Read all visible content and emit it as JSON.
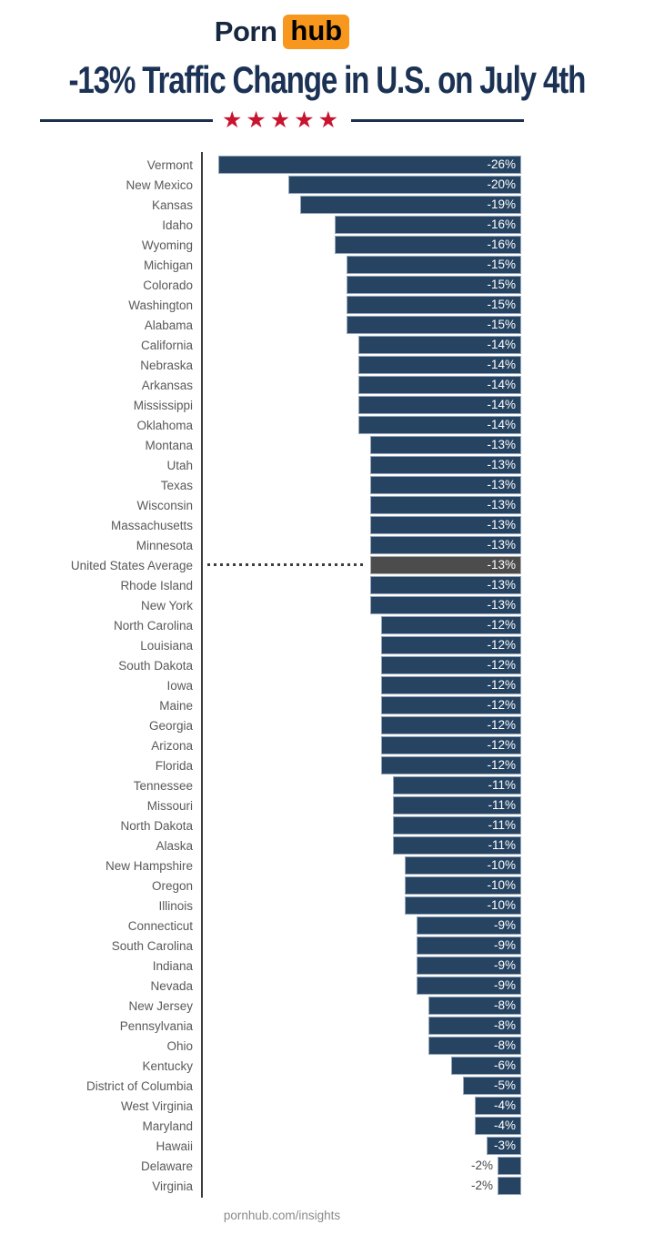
{
  "logo": {
    "porn": "Porn",
    "hub": "hub"
  },
  "header": {
    "title": "-13% Traffic Change in U.S. on July 4th",
    "star_count": 5,
    "star_glyph": "★"
  },
  "footer": {
    "text": "pornhub.com/insights"
  },
  "colors": {
    "bar": "#264462",
    "bar_border": "#94a5ba",
    "highlight_bar": "#4c4c4c",
    "title_navy": "#1c3254",
    "logo_orange": "#f7971d",
    "star_red": "#c8142f",
    "label_gray": "#595959",
    "axis_gray": "#3c3c3c",
    "footer_gray": "#8b8b8b"
  },
  "chart_data": {
    "type": "bar",
    "orientation": "horizontal",
    "unit": "%",
    "title": "-13% Traffic Change in U.S. on July 4th",
    "xlim": [
      -27.3,
      0
    ],
    "value_anchor": "right-edge, bars extend left for negative values",
    "legend": "none",
    "grid": "off",
    "highlight_label": "United States Average",
    "highlight_note": "gray bar with dotted leader line from axis",
    "bars": [
      {
        "label": "Vermont",
        "value": -26
      },
      {
        "label": "New Mexico",
        "value": -20
      },
      {
        "label": "Kansas",
        "value": -19
      },
      {
        "label": "Idaho",
        "value": -16
      },
      {
        "label": "Wyoming",
        "value": -16
      },
      {
        "label": "Michigan",
        "value": -15
      },
      {
        "label": "Colorado",
        "value": -15
      },
      {
        "label": "Washington",
        "value": -15
      },
      {
        "label": "Alabama",
        "value": -15
      },
      {
        "label": "California",
        "value": -14
      },
      {
        "label": "Nebraska",
        "value": -14
      },
      {
        "label": "Arkansas",
        "value": -14
      },
      {
        "label": "Mississippi",
        "value": -14
      },
      {
        "label": "Oklahoma",
        "value": -14
      },
      {
        "label": "Montana",
        "value": -13
      },
      {
        "label": "Utah",
        "value": -13
      },
      {
        "label": "Texas",
        "value": -13
      },
      {
        "label": "Wisconsin",
        "value": -13
      },
      {
        "label": "Massachusetts",
        "value": -13
      },
      {
        "label": "Minnesota",
        "value": -13
      },
      {
        "label": "United States Average",
        "value": -13,
        "highlight": true
      },
      {
        "label": "Rhode Island",
        "value": -13
      },
      {
        "label": "New York",
        "value": -13
      },
      {
        "label": "North Carolina",
        "value": -12
      },
      {
        "label": "Louisiana",
        "value": -12
      },
      {
        "label": "South Dakota",
        "value": -12
      },
      {
        "label": "Iowa",
        "value": -12
      },
      {
        "label": "Maine",
        "value": -12
      },
      {
        "label": "Georgia",
        "value": -12
      },
      {
        "label": "Arizona",
        "value": -12
      },
      {
        "label": "Florida",
        "value": -12
      },
      {
        "label": "Tennessee",
        "value": -11
      },
      {
        "label": "Missouri",
        "value": -11
      },
      {
        "label": "North Dakota",
        "value": -11
      },
      {
        "label": "Alaska",
        "value": -11
      },
      {
        "label": "New Hampshire",
        "value": -10
      },
      {
        "label": "Oregon",
        "value": -10
      },
      {
        "label": "Illinois",
        "value": -10
      },
      {
        "label": "Connecticut",
        "value": -9
      },
      {
        "label": "South Carolina",
        "value": -9
      },
      {
        "label": "Indiana",
        "value": -9
      },
      {
        "label": "Nevada",
        "value": -9
      },
      {
        "label": "New Jersey",
        "value": -8
      },
      {
        "label": "Pennsylvania",
        "value": -8
      },
      {
        "label": "Ohio",
        "value": -8
      },
      {
        "label": "Kentucky",
        "value": -6
      },
      {
        "label": "District of Columbia",
        "value": -5
      },
      {
        "label": "West Virginia",
        "value": -4
      },
      {
        "label": "Maryland",
        "value": -4
      },
      {
        "label": "Hawaii",
        "value": -3
      },
      {
        "label": "Delaware",
        "value": -2
      },
      {
        "label": "Virginia",
        "value": -2
      }
    ]
  }
}
